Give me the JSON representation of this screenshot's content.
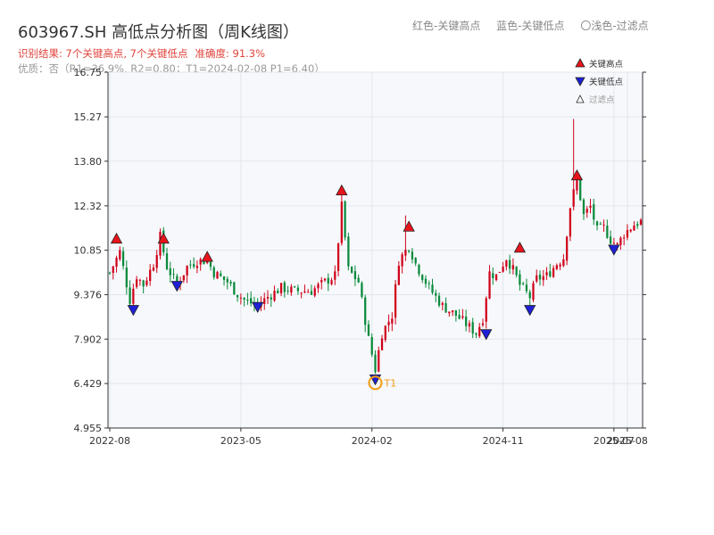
{
  "chart_data": {
    "type": "candlestick",
    "title": "603967.SH 高低点分析图（周K线图）",
    "subtitle_result": {
      "summary": "识别结果: 7个关键高点, 7个关键低点",
      "accuracy": "准确度: 91.3%"
    },
    "subtitle_quality": "优质：否（R1=36.9%, R2=0.80；T1=2024-02-08 P1=6.40）",
    "top_legend": [
      "红色-关键高点",
      "蓝色-关键低点",
      "〇浅色-过滤点"
    ],
    "legend": {
      "placement": "top-right",
      "items": [
        "关键高点",
        "关键低点",
        "过滤点"
      ]
    },
    "colors": {
      "up": "#d0021b",
      "down": "#0a8a3b",
      "key_high": "#e8141c",
      "key_low": "#1f1fd6",
      "annotation": "#f39c12",
      "plot_bg": "#f6f8fb",
      "grid": "#e2e6ec"
    },
    "ylim": [
      4.955,
      16.75
    ],
    "y_ticks": [
      "16.75",
      "15.27",
      "13.80",
      "12.32",
      "10.85",
      "9.376",
      "7.902",
      "6.429",
      "4.955"
    ],
    "x_ticks": [
      {
        "label": "2022-08",
        "week": 0
      },
      {
        "label": "2023-05",
        "week": 39
      },
      {
        "label": "2024-02",
        "week": 78
      },
      {
        "label": "2024-11",
        "week": 117
      },
      {
        "label": "2025-07",
        "week": 150
      },
      {
        "label": "2025-08",
        "week": 154
      }
    ],
    "week_count": 159,
    "price_anchors": [
      [
        0,
        10.1
      ],
      [
        3,
        10.8
      ],
      [
        6,
        9.2
      ],
      [
        8,
        10.0
      ],
      [
        10,
        9.7
      ],
      [
        13,
        10.4
      ],
      [
        15,
        11.3
      ],
      [
        17,
        10.3
      ],
      [
        20,
        9.7
      ],
      [
        23,
        10.3
      ],
      [
        26,
        10.5
      ],
      [
        29,
        10.5
      ],
      [
        31,
        10.1
      ],
      [
        35,
        9.8
      ],
      [
        38,
        9.4
      ],
      [
        40,
        9.2
      ],
      [
        44,
        9.0
      ],
      [
        47,
        9.3
      ],
      [
        51,
        9.6
      ],
      [
        55,
        9.5
      ],
      [
        60,
        9.5
      ],
      [
        64,
        9.8
      ],
      [
        67,
        10.0
      ],
      [
        69,
        12.3
      ],
      [
        71,
        10.2
      ],
      [
        74,
        9.8
      ],
      [
        77,
        7.9
      ],
      [
        79,
        6.9
      ],
      [
        81,
        8.1
      ],
      [
        84,
        8.7
      ],
      [
        86,
        10.5
      ],
      [
        89,
        11.0
      ],
      [
        91,
        10.4
      ],
      [
        95,
        9.6
      ],
      [
        99,
        9.0
      ],
      [
        103,
        8.7
      ],
      [
        106,
        8.4
      ],
      [
        109,
        8.1
      ],
      [
        111,
        8.6
      ],
      [
        113,
        10.1
      ],
      [
        115,
        10.0
      ],
      [
        118,
        10.6
      ],
      [
        120,
        10.2
      ],
      [
        122,
        9.7
      ],
      [
        125,
        9.3
      ],
      [
        127,
        9.9
      ],
      [
        130,
        10.0
      ],
      [
        133,
        10.4
      ],
      [
        135,
        10.6
      ],
      [
        137,
        12.3
      ],
      [
        139,
        13.2
      ],
      [
        141,
        12.0
      ],
      [
        143,
        12.3
      ],
      [
        145,
        11.5
      ],
      [
        147,
        11.6
      ],
      [
        149,
        11.2
      ],
      [
        151,
        11.0
      ],
      [
        153,
        11.4
      ],
      [
        156,
        11.7
      ],
      [
        158,
        11.8
      ]
    ],
    "spikes": [
      [
        138,
        15.2
      ],
      [
        88,
        12.0
      ],
      [
        69,
        13.0
      ]
    ],
    "key_highs": [
      {
        "week": 2,
        "price": 11.2
      },
      {
        "week": 16,
        "price": 11.2
      },
      {
        "week": 29,
        "price": 10.6
      },
      {
        "week": 69,
        "price": 12.8
      },
      {
        "week": 89,
        "price": 11.6
      },
      {
        "week": 122,
        "price": 10.9
      },
      {
        "week": 139,
        "price": 13.3
      }
    ],
    "key_lows": [
      {
        "week": 7,
        "price": 8.9
      },
      {
        "week": 20,
        "price": 9.7
      },
      {
        "week": 44,
        "price": 9.0
      },
      {
        "week": 79,
        "price": 6.6
      },
      {
        "week": 112,
        "price": 8.1
      },
      {
        "week": 125,
        "price": 8.9
      },
      {
        "week": 150,
        "price": 10.9
      }
    ],
    "annotation": {
      "label": "T1",
      "week": 79,
      "price": 6.45
    }
  }
}
